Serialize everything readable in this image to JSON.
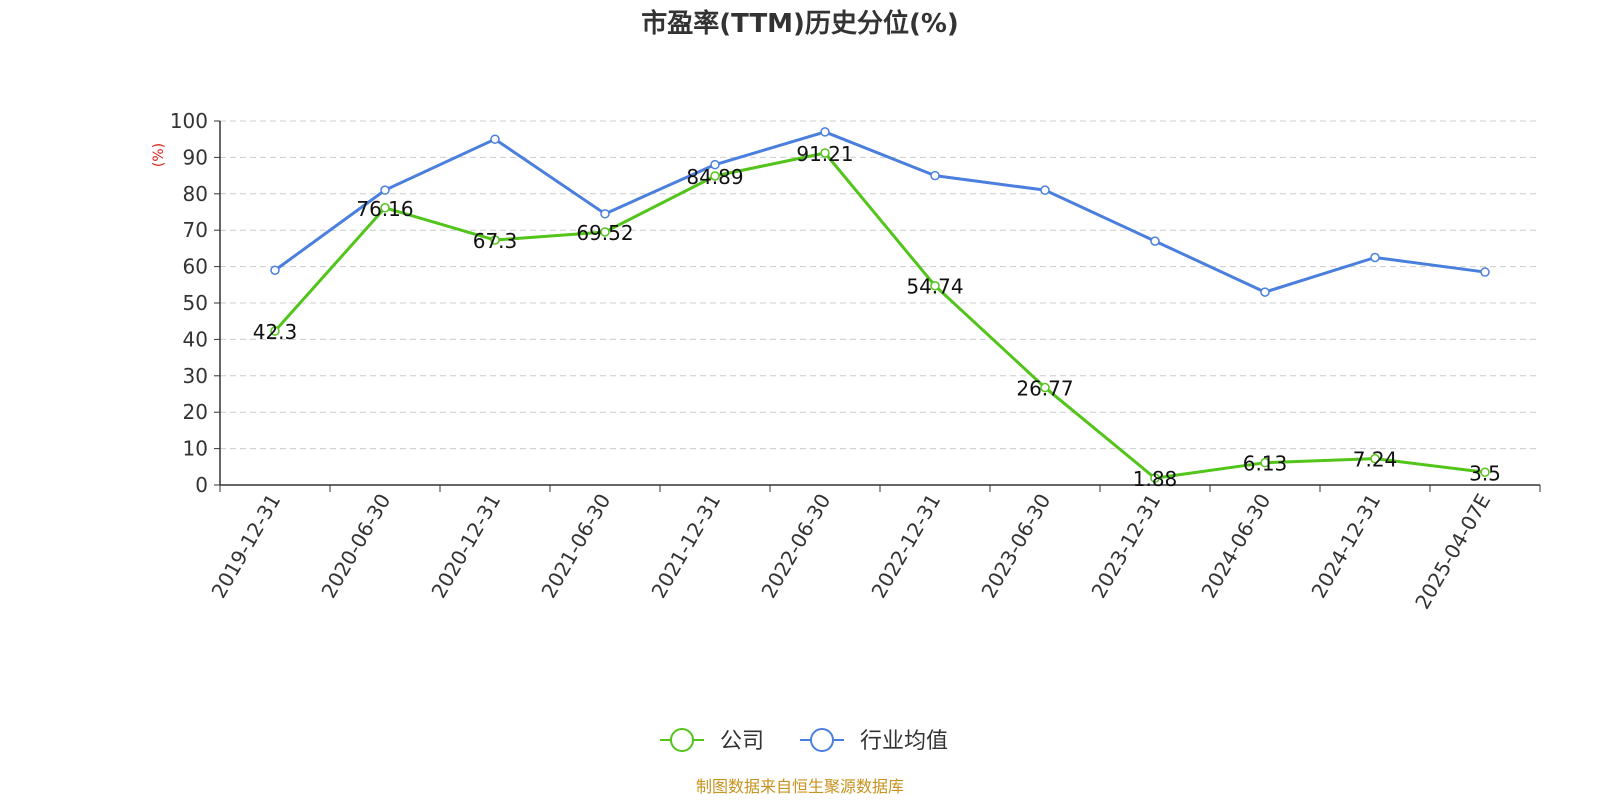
{
  "chart_data": {
    "type": "line",
    "title": "市盈率(TTM)历史分位(%)",
    "ylabel": "(%)",
    "xlabel": "",
    "ylim": [
      0,
      100
    ],
    "yticks": [
      0,
      10,
      20,
      30,
      40,
      50,
      60,
      70,
      80,
      90,
      100
    ],
    "grid": true,
    "legend_position": "bottom-center",
    "categories": [
      "2019-12-31",
      "2020-06-30",
      "2020-12-31",
      "2021-06-30",
      "2021-12-31",
      "2022-06-30",
      "2022-12-31",
      "2023-06-30",
      "2023-12-31",
      "2024-06-30",
      "2024-12-31",
      "2025-04-07E"
    ],
    "series": [
      {
        "name": "公司",
        "color": "#52c41a",
        "show_labels": true,
        "values": [
          42.3,
          76.16,
          67.3,
          69.52,
          84.89,
          91.21,
          54.74,
          26.77,
          1.88,
          6.13,
          7.24,
          3.5
        ]
      },
      {
        "name": "行业均值",
        "color": "#4a7fde",
        "show_labels": false,
        "values": [
          59,
          81,
          95,
          74.5,
          88,
          97,
          85,
          81,
          67,
          53,
          62.5,
          58.5
        ]
      }
    ]
  },
  "source_note": "制图数据来自恒生聚源数据库"
}
